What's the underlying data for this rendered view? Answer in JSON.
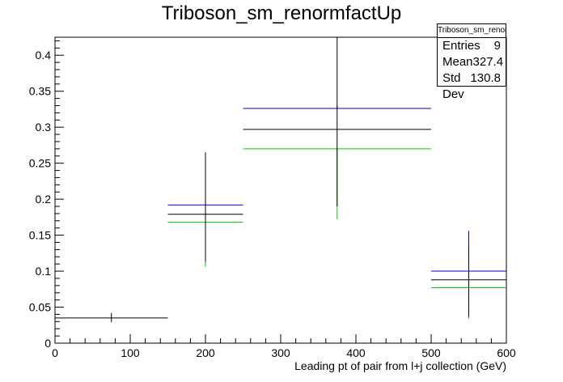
{
  "chart_data": {
    "type": "histogram",
    "title": "Triboson_sm_renormfactUp",
    "xlabel": "Leading pt of pair from l+j collection (GeV)",
    "ylabel": "",
    "xlim": [
      0,
      600
    ],
    "ylim": [
      0,
      0.425
    ],
    "x_ticks": [
      0,
      100,
      200,
      300,
      400,
      500,
      600
    ],
    "y_ticks": [
      0,
      0.05,
      0.1,
      0.15,
      0.2,
      0.25,
      0.3,
      0.35,
      0.4
    ],
    "x_tick_labels": [
      "0",
      "100",
      "200",
      "300",
      "400",
      "500",
      "600"
    ],
    "y_tick_labels": [
      "0",
      "0.05",
      "0.1",
      "0.15",
      "0.2",
      "0.25",
      "0.3",
      "0.35",
      "0.4"
    ],
    "bins": [
      {
        "low": 0,
        "high": 150,
        "center": 75,
        "value": 0.035,
        "err_low": 0.029,
        "err_high": 0.042
      },
      {
        "low": 150,
        "high": 250,
        "center": 200,
        "value": 0.179,
        "err_low": 0.113,
        "err_high": 0.265
      },
      {
        "low": 250,
        "high": 500,
        "center": 375,
        "value": 0.297,
        "err_low": 0.19,
        "err_high": 0.425
      },
      {
        "low": 500,
        "high": 600,
        "center": 550,
        "value": 0.088,
        "err_low": 0.037,
        "err_high": 0.135
      }
    ],
    "variations": [
      {
        "color": "#0000cc",
        "bins": [
          {
            "low": 150,
            "high": 250,
            "center": 200,
            "value": 0.192,
            "err_low": 0.192,
            "err_high": 0.258
          },
          {
            "low": 250,
            "high": 500,
            "center": 375,
            "value": 0.326,
            "err_low": 0.326,
            "err_high": 0.33
          },
          {
            "low": 500,
            "high": 600,
            "center": 550,
            "value": 0.1,
            "err_low": 0.1,
            "err_high": 0.156
          }
        ]
      },
      {
        "color": "#00cc00",
        "bins": [
          {
            "low": 150,
            "high": 250,
            "center": 200,
            "value": 0.168,
            "err_low": 0.106,
            "err_high": 0.168
          },
          {
            "low": 250,
            "high": 500,
            "center": 375,
            "value": 0.27,
            "err_low": 0.172,
            "err_high": 0.27
          },
          {
            "low": 500,
            "high": 600,
            "center": 550,
            "value": 0.077,
            "err_low": 0.034,
            "err_high": 0.077
          }
        ]
      }
    ],
    "stats": {
      "title": "Triboson_sm_renormfactUp",
      "rows": [
        {
          "label": "Entries",
          "value": "9"
        },
        {
          "label": "Mean",
          "value": "327.4"
        },
        {
          "label": "Std Dev",
          "value": "130.8"
        }
      ]
    }
  }
}
